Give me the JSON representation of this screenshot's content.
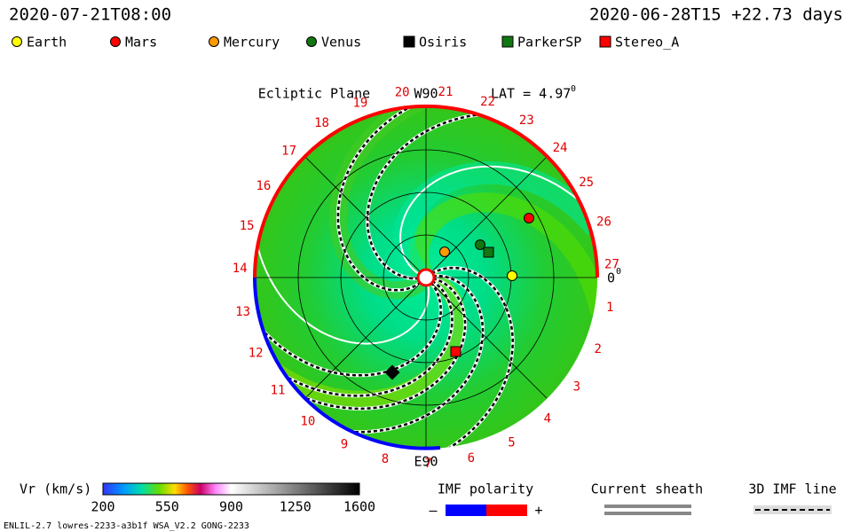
{
  "header": {
    "time": "2020-07-21T08:00",
    "reference": "2020-06-28T15 +22.73 days"
  },
  "legend": [
    {
      "name": "Earth",
      "color": "#ffff00",
      "shape": "circle"
    },
    {
      "name": "Mars",
      "color": "#ff0000",
      "shape": "circle"
    },
    {
      "name": "Mercury",
      "color": "#ff9900",
      "shape": "circle"
    },
    {
      "name": "Venus",
      "color": "#117711",
      "shape": "circle"
    },
    {
      "name": "Osiris",
      "color": "#000000",
      "shape": "square"
    },
    {
      "name": "ParkerSP",
      "color": "#117711",
      "shape": "square"
    },
    {
      "name": "Stereo_A",
      "color": "#ff0000",
      "shape": "square"
    }
  ],
  "plot": {
    "title": "Ecliptic Plane",
    "top_label": "W90",
    "bottom_label": "E90",
    "lat_label": "LAT = 4.97",
    "lat_degree": "0",
    "right_label": "0",
    "right_degree": "0",
    "day_labels": [
      "1",
      "2",
      "3",
      "4",
      "5",
      "6",
      "7",
      "8",
      "9",
      "10",
      "11",
      "12",
      "13",
      "14",
      "15",
      "16",
      "17",
      "18",
      "19",
      "20",
      "21",
      "22",
      "23",
      "24",
      "25",
      "26",
      "27"
    ]
  },
  "colorbar": {
    "label": "Vr (km/s)",
    "ticks": [
      "200",
      "550",
      "900",
      "1250",
      "1600"
    ]
  },
  "polarity": {
    "title": "IMF polarity",
    "minus": "–",
    "plus": "+"
  },
  "sheath": {
    "title": "Current sheath"
  },
  "imf_line": {
    "title": "3D IMF line"
  },
  "footer": "ENLIL-2.7 lowres-2233-a3b1f WSA_V2.2 GONG-2233"
}
